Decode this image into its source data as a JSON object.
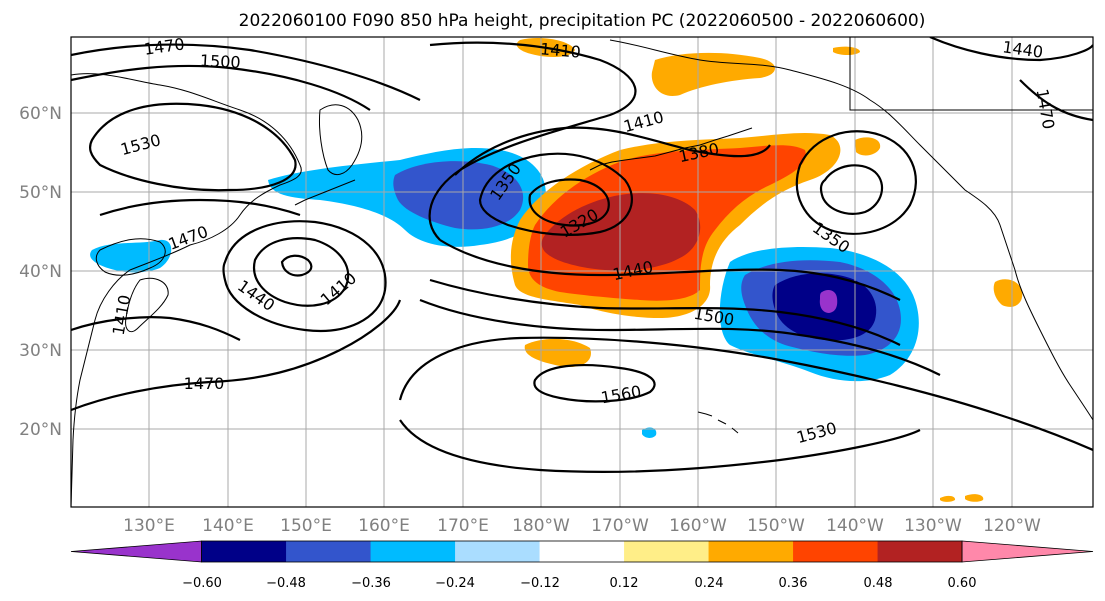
{
  "title": "2022060100 F090 850 hPa height, precipitation PC (2022060500 - 2022060600)",
  "lat_labels": [
    "60°N",
    "50°N",
    "40°N",
    "30°N",
    "20°N"
  ],
  "lon_labels": [
    "130°E",
    "140°E",
    "150°E",
    "160°E",
    "170°E",
    "180°W",
    "170°W",
    "160°W",
    "150°W",
    "140°W",
    "130°W",
    "120°W"
  ],
  "contour_labels": [
    "1470",
    "1500",
    "1410",
    "1440",
    "1530",
    "1410",
    "1380",
    "1350",
    "1320",
    "1440",
    "1350",
    "1470",
    "1440",
    "1410",
    "1410",
    "1500",
    "1470",
    "1560",
    "1530",
    "1470"
  ],
  "colorbar": {
    "colors": [
      "#9933cc",
      "#000088",
      "#3355cc",
      "#00bbff",
      "#aaddff",
      "#ffffff",
      "#ffee88",
      "#ffaa00",
      "#ff4400",
      "#b22222",
      "#ff88aa"
    ],
    "tick_labels": [
      "−0.60",
      "−0.48",
      "−0.36",
      "−0.24",
      "−0.12",
      "0.12",
      "0.24",
      "0.36",
      "0.48",
      "0.60"
    ]
  },
  "colors": {
    "negative_strong": "#000088",
    "negative_mid": "#3355cc",
    "negative_weak": "#00bbff",
    "positive_weak": "#ffaa00",
    "positive_mid": "#ff4400",
    "positive_strong": "#b22222"
  }
}
